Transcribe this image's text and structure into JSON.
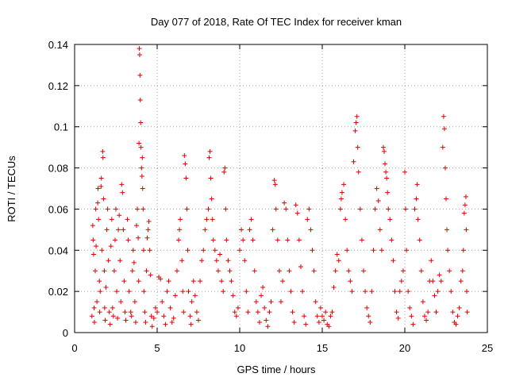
{
  "chart_data": {
    "type": "scatter",
    "title": "Day 077 of 2018, Rate Of TEC Index for receiver kman",
    "xlabel": "GPS time / hours",
    "ylabel": "ROTI / TECUs",
    "xlim": [
      0,
      25
    ],
    "ylim": [
      0,
      0.14
    ],
    "x_ticks": [
      {
        "value": 0,
        "label": "0"
      },
      {
        "value": 5,
        "label": "5"
      },
      {
        "value": 10,
        "label": "10"
      },
      {
        "value": 15,
        "label": "15"
      },
      {
        "value": 20,
        "label": "20"
      },
      {
        "value": 25,
        "label": "25"
      }
    ],
    "y_ticks": [
      {
        "value": 0,
        "label": "0"
      },
      {
        "value": 0.02,
        "label": "0.02"
      },
      {
        "value": 0.04,
        "label": "0.04"
      },
      {
        "value": 0.06,
        "label": "0.06"
      },
      {
        "value": 0.08,
        "label": "0.08"
      },
      {
        "value": 0.1,
        "label": "0.1"
      },
      {
        "value": 0.12,
        "label": "0.12"
      },
      {
        "value": 0.14,
        "label": "0.14"
      }
    ],
    "grid": true,
    "marker": "+",
    "color": "#e00000",
    "series": [
      {
        "name": "ROTI",
        "points": [
          [
            1.05,
            0.008
          ],
          [
            1.1,
            0.052
          ],
          [
            1.12,
            0.045
          ],
          [
            1.15,
            0.038
          ],
          [
            1.18,
            0.012
          ],
          [
            1.2,
            0.005
          ],
          [
            1.25,
            0.03
          ],
          [
            1.28,
            0.06
          ],
          [
            1.3,
            0.042
          ],
          [
            1.35,
            0.015
          ],
          [
            1.4,
            0.063
          ],
          [
            1.42,
            0.07
          ],
          [
            1.45,
            0.055
          ],
          [
            1.5,
            0.025
          ],
          [
            1.52,
            0.01
          ],
          [
            1.55,
            0.02
          ],
          [
            1.6,
            0.071
          ],
          [
            1.62,
            0.075
          ],
          [
            1.65,
            0.04
          ],
          [
            1.7,
            0.088
          ],
          [
            1.72,
            0.085
          ],
          [
            1.75,
            0.065
          ],
          [
            1.8,
            0.03
          ],
          [
            1.82,
            0.012
          ],
          [
            1.85,
            0.006
          ],
          [
            1.9,
            0.022
          ],
          [
            1.95,
            0.05
          ],
          [
            2.0,
            0.06
          ],
          [
            2.05,
            0.035
          ],
          [
            2.1,
            0.01
          ],
          [
            2.15,
            0.004
          ],
          [
            2.2,
            0.042
          ],
          [
            2.25,
            0.055
          ],
          [
            2.3,
            0.012
          ],
          [
            2.35,
            0.008
          ],
          [
            2.4,
            0.03
          ],
          [
            2.45,
            0.045
          ],
          [
            2.5,
            0.06
          ],
          [
            2.55,
            0.02
          ],
          [
            2.6,
            0.007
          ],
          [
            2.65,
            0.05
          ],
          [
            2.7,
            0.057
          ],
          [
            2.75,
            0.035
          ],
          [
            2.8,
            0.015
          ],
          [
            2.85,
            0.072
          ],
          [
            2.9,
            0.068
          ],
          [
            2.95,
            0.05
          ],
          [
            3.0,
            0.025
          ],
          [
            3.05,
            0.01
          ],
          [
            3.1,
            0.006
          ],
          [
            3.2,
            0.055
          ],
          [
            3.25,
            0.045
          ],
          [
            3.3,
            0.02
          ],
          [
            3.4,
            0.01
          ],
          [
            3.45,
            0.008
          ],
          [
            3.5,
            0.03
          ],
          [
            3.55,
            0.04
          ],
          [
            3.6,
            0.034
          ],
          [
            3.65,
            0.015
          ],
          [
            3.7,
            0.005
          ],
          [
            3.75,
            0.052
          ],
          [
            3.8,
            0.06
          ],
          [
            3.85,
            0.046
          ],
          [
            3.88,
            0.025
          ],
          [
            3.9,
            0.092
          ],
          [
            3.92,
            0.138
          ],
          [
            3.94,
            0.135
          ],
          [
            3.96,
            0.125
          ],
          [
            3.98,
            0.113
          ],
          [
            4.0,
            0.102
          ],
          [
            4.02,
            0.09
          ],
          [
            4.05,
            0.08
          ],
          [
            4.08,
            0.076
          ],
          [
            4.1,
            0.085
          ],
          [
            4.12,
            0.07
          ],
          [
            4.15,
            0.06
          ],
          [
            4.18,
            0.04
          ],
          [
            4.2,
            0.02
          ],
          [
            4.25,
            0.01
          ],
          [
            4.3,
            0.005
          ],
          [
            4.35,
            0.03
          ],
          [
            4.4,
            0.046
          ],
          [
            4.45,
            0.05
          ],
          [
            4.5,
            0.054
          ],
          [
            4.55,
            0.04
          ],
          [
            4.6,
            0.028
          ],
          [
            4.65,
            0.008
          ],
          [
            4.7,
            0.003
          ],
          [
            4.8,
            0.007
          ],
          [
            4.9,
            0.012
          ],
          [
            5.0,
            0.01
          ],
          [
            5.1,
            0.027
          ],
          [
            5.2,
            0.026
          ],
          [
            5.3,
            0.015
          ],
          [
            5.4,
            0.008
          ],
          [
            5.5,
            0.004
          ],
          [
            5.6,
            0.02
          ],
          [
            5.7,
            0.025
          ],
          [
            5.8,
            0.012
          ],
          [
            5.9,
            0.005
          ],
          [
            6.0,
            0.007
          ],
          [
            6.1,
            0.018
          ],
          [
            6.2,
            0.03
          ],
          [
            6.3,
            0.045
          ],
          [
            6.35,
            0.05
          ],
          [
            6.4,
            0.055
          ],
          [
            6.5,
            0.035
          ],
          [
            6.55,
            0.02
          ],
          [
            6.6,
            0.01
          ],
          [
            6.65,
            0.086
          ],
          [
            6.7,
            0.082
          ],
          [
            6.75,
            0.075
          ],
          [
            6.8,
            0.06
          ],
          [
            6.85,
            0.04
          ],
          [
            6.9,
            0.02
          ],
          [
            7.0,
            0.008
          ],
          [
            7.05,
            0.004
          ],
          [
            7.1,
            0.015
          ],
          [
            7.2,
            0.025
          ],
          [
            7.3,
            0.018
          ],
          [
            7.4,
            0.01
          ],
          [
            7.5,
            0.006
          ],
          [
            7.6,
            0.025
          ],
          [
            7.7,
            0.035
          ],
          [
            7.8,
            0.04
          ],
          [
            7.9,
            0.05
          ],
          [
            8.0,
            0.055
          ],
          [
            8.1,
            0.06
          ],
          [
            8.15,
            0.085
          ],
          [
            8.2,
            0.088
          ],
          [
            8.25,
            0.075
          ],
          [
            8.3,
            0.065
          ],
          [
            8.35,
            0.055
          ],
          [
            8.4,
            0.045
          ],
          [
            8.5,
            0.04
          ],
          [
            8.6,
            0.035
          ],
          [
            8.7,
            0.03
          ],
          [
            8.8,
            0.038
          ],
          [
            8.9,
            0.025
          ],
          [
            9.0,
            0.02
          ],
          [
            9.05,
            0.078
          ],
          [
            9.1,
            0.08
          ],
          [
            9.15,
            0.06
          ],
          [
            9.2,
            0.045
          ],
          [
            9.3,
            0.035
          ],
          [
            9.4,
            0.03
          ],
          [
            9.5,
            0.025
          ],
          [
            9.6,
            0.018
          ],
          [
            9.7,
            0.01
          ],
          [
            9.8,
            0.008
          ],
          [
            9.9,
            0.012
          ],
          [
            10.0,
            0.04
          ],
          [
            10.1,
            0.05
          ],
          [
            10.2,
            0.045
          ],
          [
            10.3,
            0.035
          ],
          [
            10.4,
            0.02
          ],
          [
            10.5,
            0.01
          ],
          [
            10.6,
            0.05
          ],
          [
            10.7,
            0.055
          ],
          [
            10.8,
            0.045
          ],
          [
            10.9,
            0.03
          ],
          [
            11.0,
            0.015
          ],
          [
            11.1,
            0.01
          ],
          [
            11.2,
            0.005
          ],
          [
            11.3,
            0.018
          ],
          [
            11.4,
            0.022
          ],
          [
            11.5,
            0.012
          ],
          [
            11.6,
            0.006
          ],
          [
            11.7,
            0.003
          ],
          [
            11.8,
            0.01
          ],
          [
            11.9,
            0.015
          ],
          [
            12.0,
            0.05
          ],
          [
            12.1,
            0.074
          ],
          [
            12.15,
            0.072
          ],
          [
            12.2,
            0.06
          ],
          [
            12.3,
            0.045
          ],
          [
            12.4,
            0.03
          ],
          [
            12.5,
            0.015
          ],
          [
            12.6,
            0.025
          ],
          [
            12.7,
            0.063
          ],
          [
            12.8,
            0.06
          ],
          [
            12.9,
            0.045
          ],
          [
            13.0,
            0.03
          ],
          [
            13.1,
            0.02
          ],
          [
            13.2,
            0.01
          ],
          [
            13.3,
            0.005
          ],
          [
            13.4,
            0.062
          ],
          [
            13.5,
            0.058
          ],
          [
            13.6,
            0.045
          ],
          [
            13.7,
            0.032
          ],
          [
            13.8,
            0.02
          ],
          [
            13.9,
            0.008
          ],
          [
            14.0,
            0.004
          ],
          [
            14.1,
            0.055
          ],
          [
            14.2,
            0.06
          ],
          [
            14.3,
            0.05
          ],
          [
            14.4,
            0.04
          ],
          [
            14.5,
            0.03
          ],
          [
            14.6,
            0.015
          ],
          [
            14.7,
            0.008
          ],
          [
            14.8,
            0.005
          ],
          [
            14.9,
            0.012
          ],
          [
            15.0,
            0.008
          ],
          [
            15.1,
            0.006
          ],
          [
            15.2,
            0.01
          ],
          [
            15.3,
            0.004
          ],
          [
            15.4,
            0.003
          ],
          [
            15.5,
            0.008
          ],
          [
            15.6,
            0.01
          ],
          [
            15.7,
            0.022
          ],
          [
            15.8,
            0.03
          ],
          [
            15.9,
            0.038
          ],
          [
            16.0,
            0.035
          ],
          [
            16.1,
            0.06
          ],
          [
            16.15,
            0.065
          ],
          [
            16.2,
            0.068
          ],
          [
            16.3,
            0.072
          ],
          [
            16.4,
            0.055
          ],
          [
            16.5,
            0.04
          ],
          [
            16.6,
            0.03
          ],
          [
            16.7,
            0.025
          ],
          [
            16.8,
            0.02
          ],
          [
            16.9,
            0.083
          ],
          [
            17.0,
            0.098
          ],
          [
            17.05,
            0.102
          ],
          [
            17.1,
            0.105
          ],
          [
            17.15,
            0.09
          ],
          [
            17.2,
            0.078
          ],
          [
            17.3,
            0.06
          ],
          [
            17.4,
            0.045
          ],
          [
            17.5,
            0.03
          ],
          [
            17.6,
            0.02
          ],
          [
            17.7,
            0.012
          ],
          [
            17.8,
            0.008
          ],
          [
            17.9,
            0.005
          ],
          [
            18.0,
            0.02
          ],
          [
            18.1,
            0.04
          ],
          [
            18.2,
            0.06
          ],
          [
            18.3,
            0.07
          ],
          [
            18.4,
            0.064
          ],
          [
            18.5,
            0.05
          ],
          [
            18.6,
            0.04
          ],
          [
            18.7,
            0.09
          ],
          [
            18.75,
            0.088
          ],
          [
            18.8,
            0.082
          ],
          [
            18.85,
            0.078
          ],
          [
            18.9,
            0.075
          ],
          [
            18.95,
            0.068
          ],
          [
            19.0,
            0.06
          ],
          [
            19.1,
            0.055
          ],
          [
            19.2,
            0.045
          ],
          [
            19.3,
            0.035
          ],
          [
            19.4,
            0.02
          ],
          [
            19.5,
            0.01
          ],
          [
            19.6,
            0.007
          ],
          [
            19.7,
            0.02
          ],
          [
            19.8,
            0.025
          ],
          [
            19.9,
            0.03
          ],
          [
            20.0,
            0.078
          ],
          [
            20.05,
            0.06
          ],
          [
            20.1,
            0.04
          ],
          [
            20.2,
            0.02
          ],
          [
            20.3,
            0.012
          ],
          [
            20.4,
            0.008
          ],
          [
            20.5,
            0.004
          ],
          [
            20.6,
            0.06
          ],
          [
            20.7,
            0.065
          ],
          [
            20.75,
            0.072
          ],
          [
            20.8,
            0.055
          ],
          [
            20.9,
            0.045
          ],
          [
            21.0,
            0.03
          ],
          [
            21.1,
            0.015
          ],
          [
            21.2,
            0.008
          ],
          [
            21.3,
            0.006
          ],
          [
            21.4,
            0.01
          ],
          [
            21.5,
            0.025
          ],
          [
            21.6,
            0.035
          ],
          [
            21.7,
            0.025
          ],
          [
            21.8,
            0.018
          ],
          [
            21.9,
            0.01
          ],
          [
            22.0,
            0.02
          ],
          [
            22.1,
            0.028
          ],
          [
            22.2,
            0.025
          ],
          [
            22.3,
            0.09
          ],
          [
            22.35,
            0.105
          ],
          [
            22.4,
            0.099
          ],
          [
            22.45,
            0.08
          ],
          [
            22.5,
            0.065
          ],
          [
            22.55,
            0.05
          ],
          [
            22.6,
            0.04
          ],
          [
            22.7,
            0.03
          ],
          [
            22.8,
            0.02
          ],
          [
            22.9,
            0.01
          ],
          [
            23.0,
            0.005
          ],
          [
            23.1,
            0.004
          ],
          [
            23.2,
            0.008
          ],
          [
            23.3,
            0.012
          ],
          [
            23.4,
            0.025
          ],
          [
            23.5,
            0.03
          ],
          [
            23.55,
            0.04
          ],
          [
            23.6,
            0.058
          ],
          [
            23.65,
            0.062
          ],
          [
            23.7,
            0.066
          ],
          [
            23.72,
            0.05
          ],
          [
            23.75,
            0.02
          ],
          [
            23.78,
            0.01
          ]
        ]
      }
    ]
  }
}
